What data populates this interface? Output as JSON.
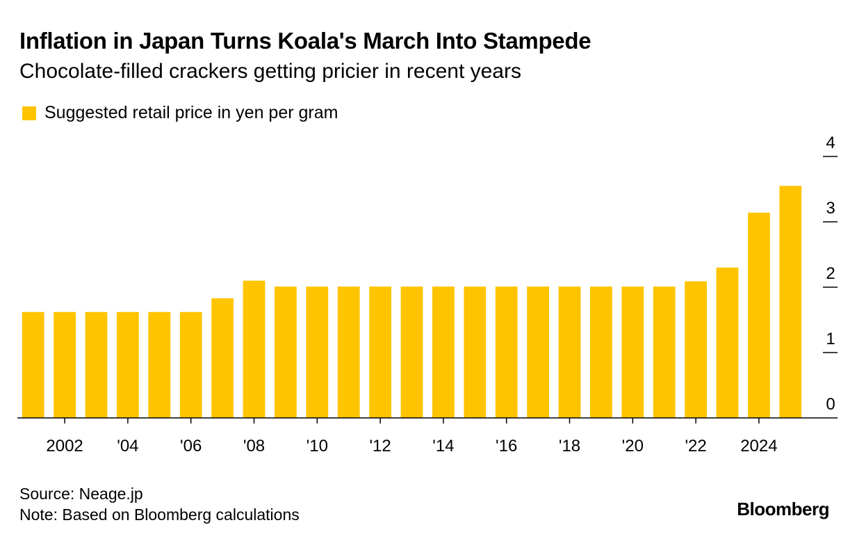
{
  "header": {
    "title": "Inflation in Japan Turns Koala's March Into Stampede",
    "subtitle": "Chocolate-filled crackers getting pricier in recent years"
  },
  "footer": {
    "source": "Source: Neage.jp",
    "note": "Note: Based on Bloomberg calculations",
    "brand": "Bloomberg"
  },
  "colors": {
    "bar": "#FFC400",
    "axis": "#000000",
    "text": "#000000"
  },
  "chart_data": {
    "type": "bar",
    "title": "Inflation in Japan Turns Koala's March Into Stampede",
    "subtitle": "Chocolate-filled crackers getting pricier in recent years",
    "legend": {
      "placement": "top-left",
      "entries": [
        "Suggested retail price in yen per gram"
      ]
    },
    "series": [
      {
        "name": "Suggested retail price in yen per gram",
        "color": "#FFC400",
        "x": [
          2001,
          2002,
          2003,
          2004,
          2005,
          2006,
          2007,
          2008,
          2009,
          2010,
          2011,
          2012,
          2013,
          2014,
          2015,
          2016,
          2017,
          2018,
          2019,
          2020,
          2021,
          2022,
          2023,
          2024,
          2025
        ],
        "values": [
          1.62,
          1.62,
          1.62,
          1.62,
          1.62,
          1.62,
          1.83,
          2.1,
          2.01,
          2.01,
          2.01,
          2.01,
          2.01,
          2.01,
          2.01,
          2.01,
          2.01,
          2.01,
          2.01,
          2.01,
          2.01,
          2.09,
          2.3,
          3.14,
          3.55
        ]
      }
    ],
    "x_ticks": [
      {
        "value": 2002,
        "label": "2002"
      },
      {
        "value": 2004,
        "label": "'04"
      },
      {
        "value": 2006,
        "label": "'06"
      },
      {
        "value": 2008,
        "label": "'08"
      },
      {
        "value": 2010,
        "label": "'10"
      },
      {
        "value": 2012,
        "label": "'12"
      },
      {
        "value": 2014,
        "label": "'14"
      },
      {
        "value": 2016,
        "label": "'16"
      },
      {
        "value": 2018,
        "label": "'18"
      },
      {
        "value": 2020,
        "label": "'20"
      },
      {
        "value": 2022,
        "label": "'22"
      },
      {
        "value": 2024,
        "label": "2024"
      }
    ],
    "y_ticks": [
      {
        "value": 0,
        "label": "0"
      },
      {
        "value": 1,
        "label": "1"
      },
      {
        "value": 2,
        "label": "2"
      },
      {
        "value": 3,
        "label": "3"
      },
      {
        "value": 4,
        "label": "4"
      }
    ],
    "ylim": [
      0,
      4
    ],
    "xlim": [
      2000.5,
      2025.5
    ],
    "y_axis_side": "right",
    "grid": false,
    "xlabel": "",
    "ylabel": ""
  }
}
